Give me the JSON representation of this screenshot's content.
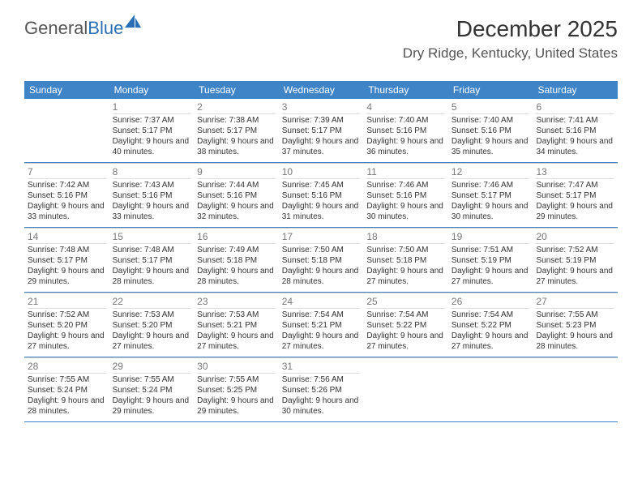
{
  "logo": {
    "text_a": "General",
    "text_b": "Blue"
  },
  "title": "December 2025",
  "location": "Dry Ridge, Kentucky, United States",
  "colors": {
    "header_bg": "#3e84c6",
    "header_text": "#ffffff",
    "week_border": "#3e84c6",
    "cell_border": "#cccccc",
    "daynum_border": "#dddddd",
    "daynum_color": "#777777",
    "text_color": "#333333",
    "logo_gray": "#555555",
    "logo_blue": "#2a6fb5"
  },
  "day_headers": [
    "Sunday",
    "Monday",
    "Tuesday",
    "Wednesday",
    "Thursday",
    "Friday",
    "Saturday"
  ],
  "weeks": [
    [
      {
        "day": "",
        "sunrise": "",
        "sunset": "",
        "daylight": "",
        "empty": true
      },
      {
        "day": "1",
        "sunrise": "Sunrise: 7:37 AM",
        "sunset": "Sunset: 5:17 PM",
        "daylight": "Daylight: 9 hours and 40 minutes."
      },
      {
        "day": "2",
        "sunrise": "Sunrise: 7:38 AM",
        "sunset": "Sunset: 5:17 PM",
        "daylight": "Daylight: 9 hours and 38 minutes."
      },
      {
        "day": "3",
        "sunrise": "Sunrise: 7:39 AM",
        "sunset": "Sunset: 5:17 PM",
        "daylight": "Daylight: 9 hours and 37 minutes."
      },
      {
        "day": "4",
        "sunrise": "Sunrise: 7:40 AM",
        "sunset": "Sunset: 5:16 PM",
        "daylight": "Daylight: 9 hours and 36 minutes."
      },
      {
        "day": "5",
        "sunrise": "Sunrise: 7:40 AM",
        "sunset": "Sunset: 5:16 PM",
        "daylight": "Daylight: 9 hours and 35 minutes."
      },
      {
        "day": "6",
        "sunrise": "Sunrise: 7:41 AM",
        "sunset": "Sunset: 5:16 PM",
        "daylight": "Daylight: 9 hours and 34 minutes."
      }
    ],
    [
      {
        "day": "7",
        "sunrise": "Sunrise: 7:42 AM",
        "sunset": "Sunset: 5:16 PM",
        "daylight": "Daylight: 9 hours and 33 minutes."
      },
      {
        "day": "8",
        "sunrise": "Sunrise: 7:43 AM",
        "sunset": "Sunset: 5:16 PM",
        "daylight": "Daylight: 9 hours and 33 minutes."
      },
      {
        "day": "9",
        "sunrise": "Sunrise: 7:44 AM",
        "sunset": "Sunset: 5:16 PM",
        "daylight": "Daylight: 9 hours and 32 minutes."
      },
      {
        "day": "10",
        "sunrise": "Sunrise: 7:45 AM",
        "sunset": "Sunset: 5:16 PM",
        "daylight": "Daylight: 9 hours and 31 minutes."
      },
      {
        "day": "11",
        "sunrise": "Sunrise: 7:46 AM",
        "sunset": "Sunset: 5:16 PM",
        "daylight": "Daylight: 9 hours and 30 minutes."
      },
      {
        "day": "12",
        "sunrise": "Sunrise: 7:46 AM",
        "sunset": "Sunset: 5:17 PM",
        "daylight": "Daylight: 9 hours and 30 minutes."
      },
      {
        "day": "13",
        "sunrise": "Sunrise: 7:47 AM",
        "sunset": "Sunset: 5:17 PM",
        "daylight": "Daylight: 9 hours and 29 minutes."
      }
    ],
    [
      {
        "day": "14",
        "sunrise": "Sunrise: 7:48 AM",
        "sunset": "Sunset: 5:17 PM",
        "daylight": "Daylight: 9 hours and 29 minutes."
      },
      {
        "day": "15",
        "sunrise": "Sunrise: 7:48 AM",
        "sunset": "Sunset: 5:17 PM",
        "daylight": "Daylight: 9 hours and 28 minutes."
      },
      {
        "day": "16",
        "sunrise": "Sunrise: 7:49 AM",
        "sunset": "Sunset: 5:18 PM",
        "daylight": "Daylight: 9 hours and 28 minutes."
      },
      {
        "day": "17",
        "sunrise": "Sunrise: 7:50 AM",
        "sunset": "Sunset: 5:18 PM",
        "daylight": "Daylight: 9 hours and 28 minutes."
      },
      {
        "day": "18",
        "sunrise": "Sunrise: 7:50 AM",
        "sunset": "Sunset: 5:18 PM",
        "daylight": "Daylight: 9 hours and 27 minutes."
      },
      {
        "day": "19",
        "sunrise": "Sunrise: 7:51 AM",
        "sunset": "Sunset: 5:19 PM",
        "daylight": "Daylight: 9 hours and 27 minutes."
      },
      {
        "day": "20",
        "sunrise": "Sunrise: 7:52 AM",
        "sunset": "Sunset: 5:19 PM",
        "daylight": "Daylight: 9 hours and 27 minutes."
      }
    ],
    [
      {
        "day": "21",
        "sunrise": "Sunrise: 7:52 AM",
        "sunset": "Sunset: 5:20 PM",
        "daylight": "Daylight: 9 hours and 27 minutes."
      },
      {
        "day": "22",
        "sunrise": "Sunrise: 7:53 AM",
        "sunset": "Sunset: 5:20 PM",
        "daylight": "Daylight: 9 hours and 27 minutes."
      },
      {
        "day": "23",
        "sunrise": "Sunrise: 7:53 AM",
        "sunset": "Sunset: 5:21 PM",
        "daylight": "Daylight: 9 hours and 27 minutes."
      },
      {
        "day": "24",
        "sunrise": "Sunrise: 7:54 AM",
        "sunset": "Sunset: 5:21 PM",
        "daylight": "Daylight: 9 hours and 27 minutes."
      },
      {
        "day": "25",
        "sunrise": "Sunrise: 7:54 AM",
        "sunset": "Sunset: 5:22 PM",
        "daylight": "Daylight: 9 hours and 27 minutes."
      },
      {
        "day": "26",
        "sunrise": "Sunrise: 7:54 AM",
        "sunset": "Sunset: 5:22 PM",
        "daylight": "Daylight: 9 hours and 27 minutes."
      },
      {
        "day": "27",
        "sunrise": "Sunrise: 7:55 AM",
        "sunset": "Sunset: 5:23 PM",
        "daylight": "Daylight: 9 hours and 28 minutes."
      }
    ],
    [
      {
        "day": "28",
        "sunrise": "Sunrise: 7:55 AM",
        "sunset": "Sunset: 5:24 PM",
        "daylight": "Daylight: 9 hours and 28 minutes."
      },
      {
        "day": "29",
        "sunrise": "Sunrise: 7:55 AM",
        "sunset": "Sunset: 5:24 PM",
        "daylight": "Daylight: 9 hours and 29 minutes."
      },
      {
        "day": "30",
        "sunrise": "Sunrise: 7:55 AM",
        "sunset": "Sunset: 5:25 PM",
        "daylight": "Daylight: 9 hours and 29 minutes."
      },
      {
        "day": "31",
        "sunrise": "Sunrise: 7:56 AM",
        "sunset": "Sunset: 5:26 PM",
        "daylight": "Daylight: 9 hours and 30 minutes."
      },
      {
        "day": "",
        "sunrise": "",
        "sunset": "",
        "daylight": "",
        "empty": true
      },
      {
        "day": "",
        "sunrise": "",
        "sunset": "",
        "daylight": "",
        "empty": true
      },
      {
        "day": "",
        "sunrise": "",
        "sunset": "",
        "daylight": "",
        "empty": true
      }
    ]
  ]
}
